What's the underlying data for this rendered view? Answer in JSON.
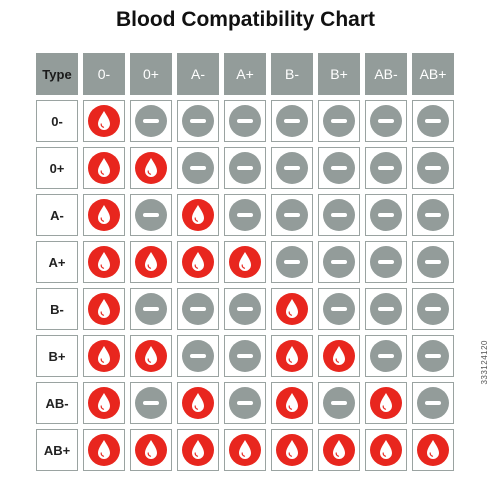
{
  "title": "Blood Compatibility Chart",
  "corner_label": "Type",
  "columns": [
    "0-",
    "0+",
    "A-",
    "A+",
    "B-",
    "B+",
    "AB-",
    "AB+"
  ],
  "rows": [
    {
      "type": "0-",
      "compatible": [
        true,
        false,
        false,
        false,
        false,
        false,
        false,
        false
      ]
    },
    {
      "type": "0+",
      "compatible": [
        true,
        true,
        false,
        false,
        false,
        false,
        false,
        false
      ]
    },
    {
      "type": "A-",
      "compatible": [
        true,
        false,
        true,
        false,
        false,
        false,
        false,
        false
      ]
    },
    {
      "type": "A+",
      "compatible": [
        true,
        true,
        true,
        true,
        false,
        false,
        false,
        false
      ]
    },
    {
      "type": "B-",
      "compatible": [
        true,
        false,
        false,
        false,
        true,
        false,
        false,
        false
      ]
    },
    {
      "type": "B+",
      "compatible": [
        true,
        true,
        false,
        false,
        true,
        true,
        false,
        false
      ]
    },
    {
      "type": "AB-",
      "compatible": [
        true,
        false,
        true,
        false,
        true,
        false,
        true,
        false
      ]
    },
    {
      "type": "AB+",
      "compatible": [
        true,
        true,
        true,
        true,
        true,
        true,
        true,
        true
      ]
    }
  ],
  "icons": {
    "compatible": "blood-drop-icon",
    "incompatible": "minus-circle-icon"
  },
  "colors": {
    "compatible": "#e8261e",
    "incompatible": "#939c9a",
    "header_bg": "#939c9a",
    "cell_border": "#9aa3a1"
  },
  "side_id": "333124120"
}
